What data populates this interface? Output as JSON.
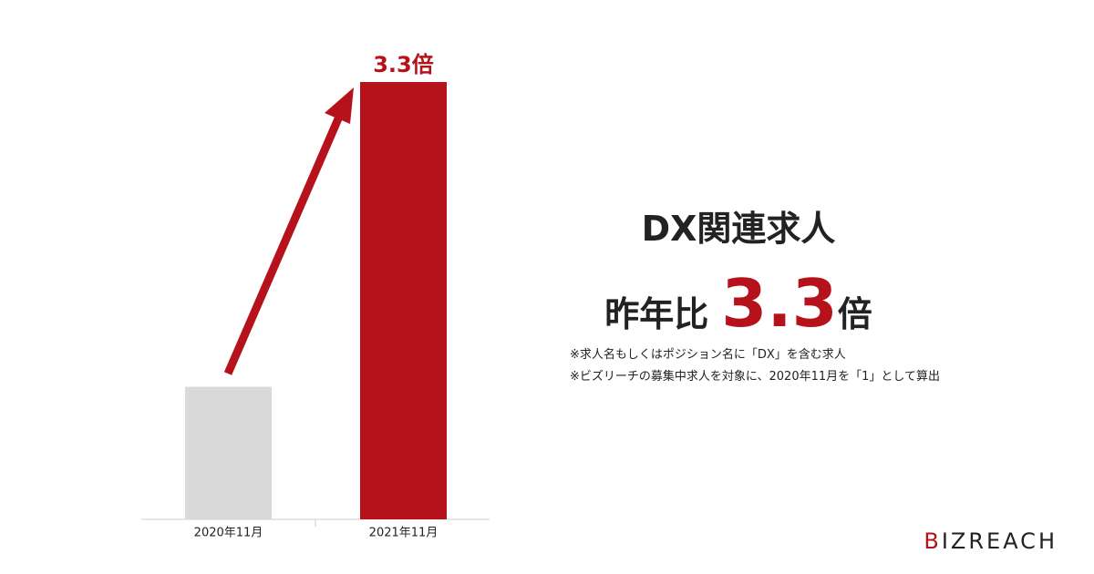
{
  "chart_data": {
    "type": "bar",
    "categories": [
      "2020年11月",
      "2021年11月"
    ],
    "values": [
      1,
      3.3
    ],
    "value_labels": [
      null,
      "3.3倍"
    ],
    "colors": [
      "#d9d9d9",
      "#b5121b"
    ],
    "ylim": [
      0,
      3.3
    ]
  },
  "panel": {
    "title": "DX関連求人",
    "ratio_prefix": "昨年比",
    "ratio_value": "3.3",
    "ratio_unit": "倍",
    "notes": [
      "※求人名もしくはポジション名に「DX」を含む求人",
      "※ビズリーチの募集中求人を対象に、2020年11月を「1」として算出"
    ]
  },
  "logo": "BIZREACH"
}
